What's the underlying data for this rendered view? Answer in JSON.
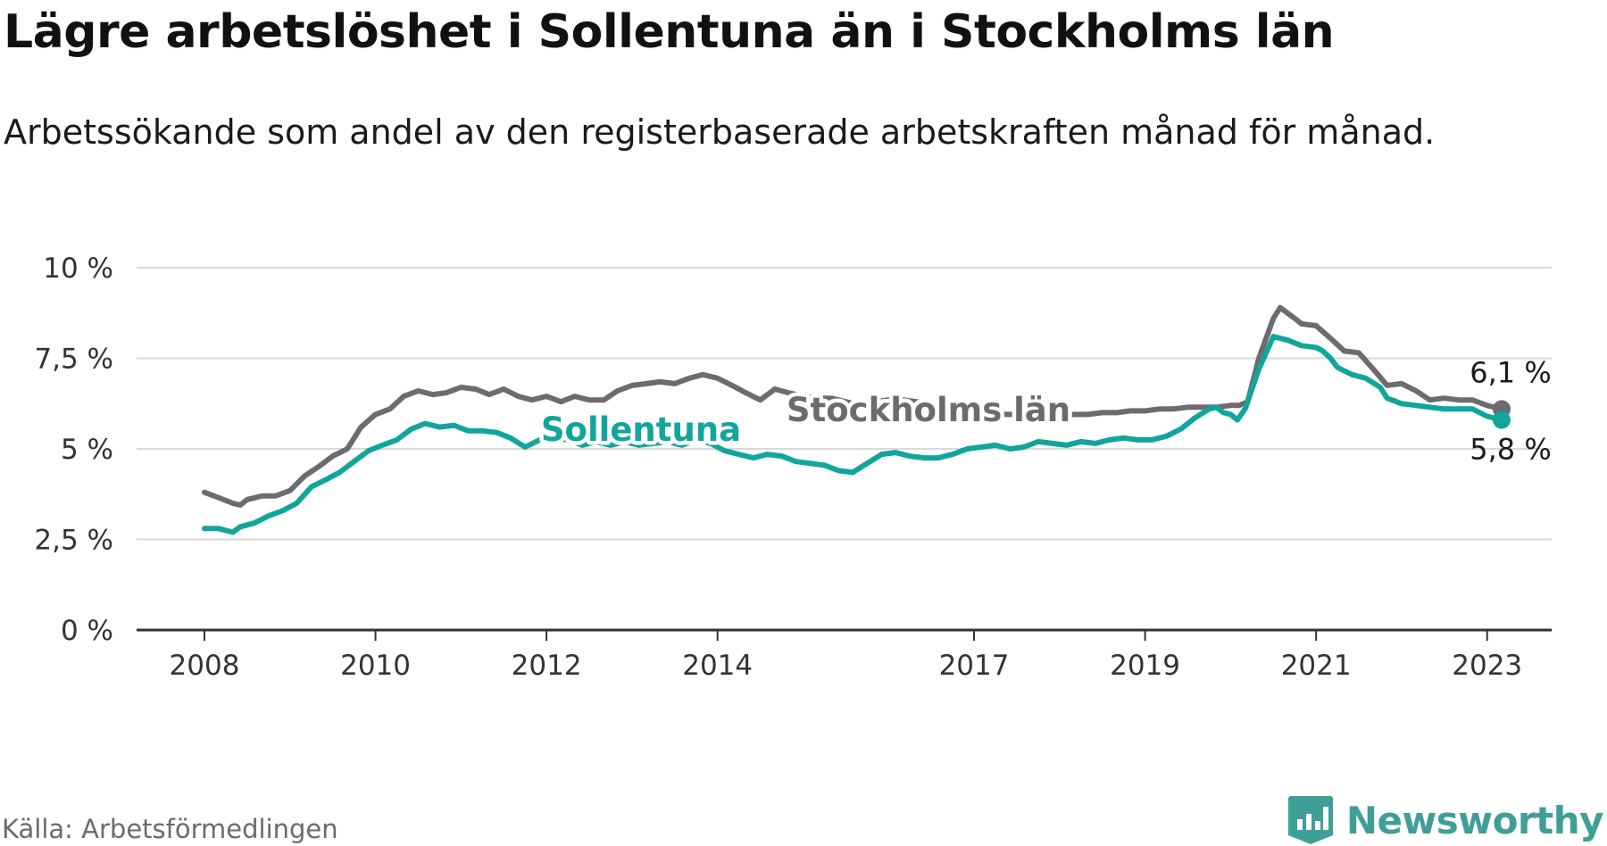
{
  "title": "Lägre arbetslöshet i Sollentuna än i Stockholms län",
  "subtitle": "Arbetssökande som andel av den registerbaserade arbetskraften månad för månad.",
  "source": "Källa: Arbetsförmedlingen",
  "brand": {
    "name": "Newsworthy",
    "icon": "newsworthy-chart-icon"
  },
  "colors": {
    "stockholm": "#6d6b70",
    "sollentuna": "#12a59a",
    "grid": "#d9d9d9",
    "axis": "#333333",
    "brand": "#3f9f97"
  },
  "chart_data": {
    "type": "line",
    "title": "Lägre arbetslöshet i Sollentuna än i Stockholms län",
    "xlabel": "",
    "ylabel": "",
    "xlim": [
      2008.0,
      2023.17
    ],
    "ylim": [
      0,
      10
    ],
    "grid": true,
    "y_ticks": [
      {
        "value": 0,
        "label": "0 %"
      },
      {
        "value": 2.5,
        "label": "2,5 %"
      },
      {
        "value": 5,
        "label": "5 %"
      },
      {
        "value": 7.5,
        "label": "7,5 %"
      },
      {
        "value": 10,
        "label": "10 %"
      }
    ],
    "x_ticks": [
      {
        "value": 2008.0,
        "label": "2008"
      },
      {
        "value": 2010.0,
        "label": "2010"
      },
      {
        "value": 2012.0,
        "label": "2012"
      },
      {
        "value": 2014.0,
        "label": "2014"
      },
      {
        "value": 2017.0,
        "label": "2017"
      },
      {
        "value": 2019.0,
        "label": "2019"
      },
      {
        "value": 2021.0,
        "label": "2021"
      },
      {
        "value": 2023.0,
        "label": "2023"
      }
    ],
    "series": [
      {
        "name": "Stockholms län",
        "end_label": "6,1 %",
        "end_label_position": "above",
        "points": [
          [
            2008.0,
            3.8
          ],
          [
            2008.17,
            3.65
          ],
          [
            2008.33,
            3.5
          ],
          [
            2008.42,
            3.45
          ],
          [
            2008.5,
            3.6
          ],
          [
            2008.67,
            3.7
          ],
          [
            2008.83,
            3.7
          ],
          [
            2009.0,
            3.85
          ],
          [
            2009.17,
            4.25
          ],
          [
            2009.33,
            4.5
          ],
          [
            2009.5,
            4.8
          ],
          [
            2009.67,
            5.0
          ],
          [
            2009.83,
            5.6
          ],
          [
            2010.0,
            5.95
          ],
          [
            2010.17,
            6.1
          ],
          [
            2010.33,
            6.45
          ],
          [
            2010.5,
            6.6
          ],
          [
            2010.67,
            6.5
          ],
          [
            2010.83,
            6.55
          ],
          [
            2011.0,
            6.7
          ],
          [
            2011.17,
            6.65
          ],
          [
            2011.33,
            6.5
          ],
          [
            2011.5,
            6.65
          ],
          [
            2011.67,
            6.45
          ],
          [
            2011.83,
            6.35
          ],
          [
            2012.0,
            6.45
          ],
          [
            2012.17,
            6.3
          ],
          [
            2012.33,
            6.45
          ],
          [
            2012.5,
            6.35
          ],
          [
            2012.67,
            6.35
          ],
          [
            2012.83,
            6.6
          ],
          [
            2013.0,
            6.75
          ],
          [
            2013.17,
            6.8
          ],
          [
            2013.33,
            6.85
          ],
          [
            2013.5,
            6.8
          ],
          [
            2013.67,
            6.95
          ],
          [
            2013.83,
            7.05
          ],
          [
            2014.0,
            6.95
          ],
          [
            2014.17,
            6.75
          ],
          [
            2014.33,
            6.55
          ],
          [
            2014.5,
            6.35
          ],
          [
            2014.67,
            6.65
          ],
          [
            2014.83,
            6.55
          ],
          [
            2015.0,
            6.45
          ],
          [
            2015.17,
            6.4
          ],
          [
            2015.33,
            6.4
          ],
          [
            2015.5,
            6.3
          ],
          [
            2015.67,
            6.2
          ],
          [
            2015.83,
            6.3
          ],
          [
            2016.0,
            6.35
          ],
          [
            2016.17,
            6.35
          ],
          [
            2016.33,
            6.3
          ],
          [
            2016.5,
            6.2
          ],
          [
            2016.67,
            6.05
          ],
          [
            2016.83,
            6.0
          ],
          [
            2017.0,
            6.0
          ],
          [
            2017.17,
            5.95
          ],
          [
            2017.33,
            5.95
          ],
          [
            2017.5,
            5.95
          ],
          [
            2017.67,
            5.9
          ],
          [
            2017.83,
            5.9
          ],
          [
            2018.0,
            5.9
          ],
          [
            2018.17,
            5.95
          ],
          [
            2018.33,
            5.95
          ],
          [
            2018.5,
            6.0
          ],
          [
            2018.67,
            6.0
          ],
          [
            2018.83,
            6.05
          ],
          [
            2019.0,
            6.05
          ],
          [
            2019.17,
            6.1
          ],
          [
            2019.33,
            6.1
          ],
          [
            2019.5,
            6.15
          ],
          [
            2019.67,
            6.15
          ],
          [
            2019.83,
            6.15
          ],
          [
            2020.0,
            6.2
          ],
          [
            2020.1,
            6.2
          ],
          [
            2020.2,
            6.3
          ],
          [
            2020.33,
            7.5
          ],
          [
            2020.5,
            8.6
          ],
          [
            2020.58,
            8.9
          ],
          [
            2020.75,
            8.6
          ],
          [
            2020.83,
            8.45
          ],
          [
            2021.0,
            8.4
          ],
          [
            2021.17,
            8.05
          ],
          [
            2021.33,
            7.7
          ],
          [
            2021.5,
            7.65
          ],
          [
            2021.67,
            7.2
          ],
          [
            2021.83,
            6.75
          ],
          [
            2022.0,
            6.8
          ],
          [
            2022.17,
            6.6
          ],
          [
            2022.33,
            6.35
          ],
          [
            2022.5,
            6.4
          ],
          [
            2022.67,
            6.35
          ],
          [
            2022.83,
            6.35
          ],
          [
            2023.0,
            6.2
          ],
          [
            2023.17,
            6.1
          ]
        ]
      },
      {
        "name": "Sollentuna",
        "end_label": "5,8 %",
        "end_label_position": "below",
        "points": [
          [
            2008.0,
            2.8
          ],
          [
            2008.17,
            2.8
          ],
          [
            2008.25,
            2.75
          ],
          [
            2008.33,
            2.7
          ],
          [
            2008.42,
            2.85
          ],
          [
            2008.58,
            2.95
          ],
          [
            2008.75,
            3.15
          ],
          [
            2008.92,
            3.3
          ],
          [
            2009.08,
            3.5
          ],
          [
            2009.25,
            3.95
          ],
          [
            2009.42,
            4.15
          ],
          [
            2009.58,
            4.35
          ],
          [
            2009.75,
            4.65
          ],
          [
            2009.92,
            4.95
          ],
          [
            2010.08,
            5.1
          ],
          [
            2010.25,
            5.25
          ],
          [
            2010.42,
            5.55
          ],
          [
            2010.58,
            5.7
          ],
          [
            2010.75,
            5.6
          ],
          [
            2010.92,
            5.65
          ],
          [
            2011.08,
            5.5
          ],
          [
            2011.25,
            5.5
          ],
          [
            2011.42,
            5.45
          ],
          [
            2011.58,
            5.3
          ],
          [
            2011.75,
            5.05
          ],
          [
            2011.92,
            5.25
          ],
          [
            2012.08,
            5.3
          ],
          [
            2012.25,
            5.25
          ],
          [
            2012.42,
            5.1
          ],
          [
            2012.58,
            5.2
          ],
          [
            2012.75,
            5.1
          ],
          [
            2012.92,
            5.2
          ],
          [
            2013.08,
            5.1
          ],
          [
            2013.25,
            5.15
          ],
          [
            2013.42,
            5.2
          ],
          [
            2013.58,
            5.1
          ],
          [
            2013.75,
            5.25
          ],
          [
            2013.92,
            5.15
          ],
          [
            2014.08,
            4.95
          ],
          [
            2014.25,
            4.85
          ],
          [
            2014.42,
            4.75
          ],
          [
            2014.58,
            4.85
          ],
          [
            2014.75,
            4.8
          ],
          [
            2014.92,
            4.65
          ],
          [
            2015.08,
            4.6
          ],
          [
            2015.25,
            4.55
          ],
          [
            2015.42,
            4.4
          ],
          [
            2015.58,
            4.35
          ],
          [
            2015.75,
            4.6
          ],
          [
            2015.92,
            4.85
          ],
          [
            2016.08,
            4.9
          ],
          [
            2016.25,
            4.8
          ],
          [
            2016.42,
            4.75
          ],
          [
            2016.58,
            4.75
          ],
          [
            2016.75,
            4.85
          ],
          [
            2016.92,
            5.0
          ],
          [
            2017.08,
            5.05
          ],
          [
            2017.25,
            5.1
          ],
          [
            2017.42,
            5.0
          ],
          [
            2017.58,
            5.05
          ],
          [
            2017.75,
            5.2
          ],
          [
            2017.92,
            5.15
          ],
          [
            2018.08,
            5.1
          ],
          [
            2018.25,
            5.2
          ],
          [
            2018.42,
            5.15
          ],
          [
            2018.58,
            5.25
          ],
          [
            2018.75,
            5.3
          ],
          [
            2018.92,
            5.25
          ],
          [
            2019.08,
            5.25
          ],
          [
            2019.25,
            5.35
          ],
          [
            2019.42,
            5.55
          ],
          [
            2019.58,
            5.85
          ],
          [
            2019.75,
            6.1
          ],
          [
            2019.83,
            6.15
          ],
          [
            2019.92,
            6.0
          ],
          [
            2020.0,
            5.95
          ],
          [
            2020.08,
            5.8
          ],
          [
            2020.17,
            6.1
          ],
          [
            2020.33,
            7.2
          ],
          [
            2020.5,
            8.1
          ],
          [
            2020.67,
            8.0
          ],
          [
            2020.83,
            7.85
          ],
          [
            2021.0,
            7.8
          ],
          [
            2021.08,
            7.7
          ],
          [
            2021.17,
            7.5
          ],
          [
            2021.25,
            7.25
          ],
          [
            2021.42,
            7.05
          ],
          [
            2021.58,
            6.95
          ],
          [
            2021.75,
            6.7
          ],
          [
            2021.83,
            6.4
          ],
          [
            2022.0,
            6.25
          ],
          [
            2022.17,
            6.2
          ],
          [
            2022.33,
            6.15
          ],
          [
            2022.5,
            6.1
          ],
          [
            2022.67,
            6.1
          ],
          [
            2022.83,
            6.1
          ],
          [
            2023.0,
            5.9
          ],
          [
            2023.17,
            5.8
          ]
        ]
      }
    ]
  }
}
